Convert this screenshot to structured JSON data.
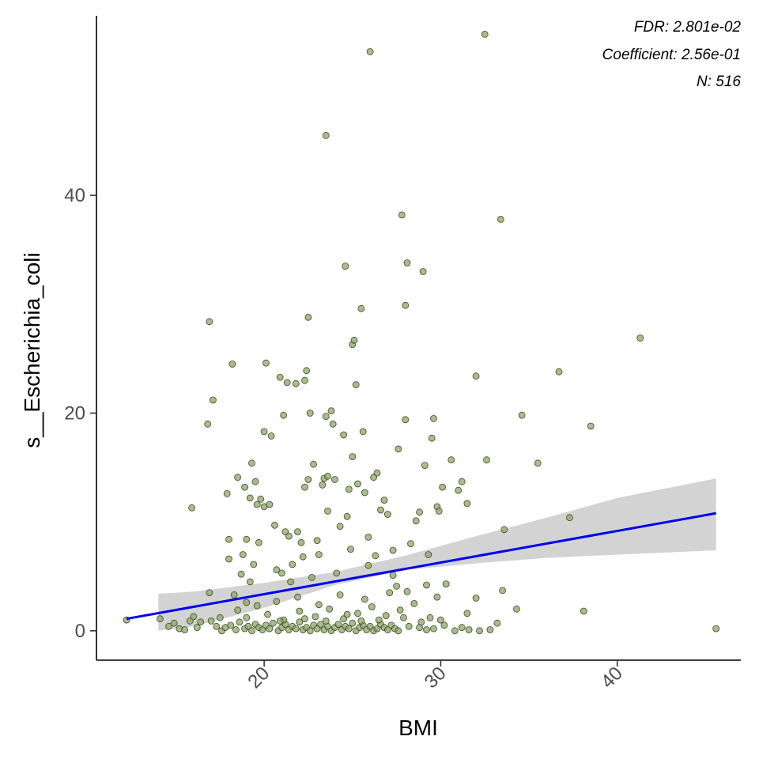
{
  "chart_data": {
    "type": "scatter",
    "xlabel": "BMI",
    "ylabel": "s__Escherichia_coli",
    "xlim": [
      10.5,
      47
    ],
    "ylim": [
      -2.7,
      56.5
    ],
    "x_ticks": [
      20,
      30,
      40
    ],
    "y_ticks": [
      0,
      20,
      40
    ],
    "grid": false,
    "annotations": [
      "FDR: 2.801e-02",
      "Coefficient: 2.56e-01",
      "N: 516"
    ],
    "colors": {
      "point_fill": "#8da46b",
      "point_stroke": "#3b4d1f",
      "fit_line": "#0000ee",
      "ribbon": "#d3d3d3"
    },
    "fit": {
      "line": [
        [
          12.2,
          1.1
        ],
        [
          45.6,
          10.8
        ]
      ],
      "ribbon_x": [
        14,
        16,
        20,
        24,
        28,
        32,
        36,
        40,
        45.6
      ],
      "ribbon_lower": [
        0,
        0.4,
        2.1,
        4.2,
        5.6,
        6.2,
        6.7,
        7.0,
        7.4
      ],
      "ribbon_upper": [
        3.4,
        3.6,
        4.4,
        5.4,
        6.9,
        8.7,
        10.4,
        12.2,
        14.0
      ]
    },
    "points": [
      [
        12.2,
        1.0
      ],
      [
        14.1,
        1.1
      ],
      [
        14.6,
        0.4
      ],
      [
        14.9,
        0.7
      ],
      [
        15.2,
        0.2
      ],
      [
        15.5,
        0.1
      ],
      [
        15.9,
        11.3
      ],
      [
        15.8,
        0.9
      ],
      [
        16.0,
        1.3
      ],
      [
        16.2,
        0.3
      ],
      [
        16.4,
        0.8
      ],
      [
        16.8,
        19.0
      ],
      [
        16.9,
        28.4
      ],
      [
        17.1,
        21.2
      ],
      [
        16.9,
        3.5
      ],
      [
        17.0,
        0.9
      ],
      [
        17.3,
        0.4
      ],
      [
        17.5,
        1.2
      ],
      [
        17.6,
        0.0
      ],
      [
        18.0,
        8.4
      ],
      [
        17.9,
        12.6
      ],
      [
        18.2,
        24.5
      ],
      [
        18.0,
        6.6
      ],
      [
        18.3,
        3.3
      ],
      [
        18.5,
        14.1
      ],
      [
        18.7,
        5.2
      ],
      [
        18.9,
        13.2
      ],
      [
        18.8,
        7.0
      ],
      [
        19.0,
        8.4
      ],
      [
        19.2,
        12.2
      ],
      [
        19.3,
        15.4
      ],
      [
        19.5,
        13.7
      ],
      [
        19.6,
        11.6
      ],
      [
        19.4,
        6.1
      ],
      [
        19.2,
        4.5
      ],
      [
        19.0,
        2.6
      ],
      [
        19.7,
        8.1
      ],
      [
        19.8,
        12.1
      ],
      [
        20.0,
        11.4
      ],
      [
        20.1,
        24.6
      ],
      [
        20.0,
        18.3
      ],
      [
        20.4,
        17.9
      ],
      [
        20.3,
        11.6
      ],
      [
        20.6,
        9.7
      ],
      [
        20.7,
        5.6
      ],
      [
        20.9,
        23.3
      ],
      [
        21.1,
        19.8
      ],
      [
        21.0,
        5.3
      ],
      [
        21.3,
        22.8
      ],
      [
        21.2,
        9.1
      ],
      [
        21.4,
        8.7
      ],
      [
        21.6,
        6.1
      ],
      [
        21.8,
        22.7
      ],
      [
        21.9,
        9.1
      ],
      [
        22.1,
        8.1
      ],
      [
        22.2,
        6.8
      ],
      [
        22.3,
        13.2
      ],
      [
        22.4,
        23.9
      ],
      [
        22.3,
        23.0
      ],
      [
        22.5,
        28.8
      ],
      [
        22.6,
        20.0
      ],
      [
        22.5,
        13.9
      ],
      [
        22.8,
        15.3
      ],
      [
        23.0,
        8.3
      ],
      [
        23.1,
        7.0
      ],
      [
        23.3,
        13.4
      ],
      [
        23.5,
        19.7
      ],
      [
        23.4,
        14.0
      ],
      [
        23.6,
        14.2
      ],
      [
        23.6,
        11.0
      ],
      [
        23.8,
        20.2
      ],
      [
        24.0,
        13.9
      ],
      [
        23.9,
        19.0
      ],
      [
        23.5,
        45.5
      ],
      [
        24.3,
        9.6
      ],
      [
        24.6,
        33.5
      ],
      [
        24.5,
        18.0
      ],
      [
        24.7,
        10.5
      ],
      [
        24.9,
        7.5
      ],
      [
        24.8,
        13.0
      ],
      [
        25.0,
        26.3
      ],
      [
        25.1,
        26.7
      ],
      [
        25.2,
        22.6
      ],
      [
        25.0,
        16.0
      ],
      [
        25.3,
        13.5
      ],
      [
        25.5,
        29.6
      ],
      [
        25.6,
        18.3
      ],
      [
        25.7,
        12.7
      ],
      [
        25.9,
        8.6
      ],
      [
        26.0,
        53.2
      ],
      [
        26.2,
        14.1
      ],
      [
        26.4,
        14.5
      ],
      [
        26.6,
        11.1
      ],
      [
        26.3,
        6.9
      ],
      [
        26.8,
        12.0
      ],
      [
        27.0,
        10.7
      ],
      [
        27.3,
        7.4
      ],
      [
        27.5,
        4.1
      ],
      [
        27.6,
        16.7
      ],
      [
        27.8,
        38.2
      ],
      [
        28.0,
        29.9
      ],
      [
        28.1,
        33.8
      ],
      [
        28.0,
        19.4
      ],
      [
        28.3,
        8.0
      ],
      [
        28.6,
        10.1
      ],
      [
        28.8,
        10.9
      ],
      [
        29.0,
        33.0
      ],
      [
        29.1,
        15.2
      ],
      [
        29.3,
        7.0
      ],
      [
        29.5,
        17.7
      ],
      [
        29.6,
        19.5
      ],
      [
        29.8,
        11.4
      ],
      [
        29.9,
        11.0
      ],
      [
        30.1,
        13.2
      ],
      [
        30.3,
        4.3
      ],
      [
        30.6,
        15.7
      ],
      [
        31.0,
        12.9
      ],
      [
        31.2,
        13.7
      ],
      [
        31.5,
        11.7
      ],
      [
        32.0,
        23.4
      ],
      [
        32.6,
        15.7
      ],
      [
        32.5,
        54.8
      ],
      [
        33.2,
        0.7
      ],
      [
        33.4,
        37.8
      ],
      [
        33.6,
        9.3
      ],
      [
        33.5,
        3.7
      ],
      [
        34.3,
        2.0
      ],
      [
        34.6,
        19.8
      ],
      [
        35.5,
        15.4
      ],
      [
        36.7,
        23.8
      ],
      [
        37.3,
        10.4
      ],
      [
        38.1,
        1.8
      ],
      [
        38.5,
        18.8
      ],
      [
        41.3,
        26.9
      ],
      [
        45.6,
        0.2
      ],
      [
        17.8,
        0.3
      ],
      [
        18.1,
        0.5
      ],
      [
        18.4,
        0.1
      ],
      [
        18.6,
        0.8
      ],
      [
        18.9,
        0.2
      ],
      [
        19.1,
        0.4
      ],
      [
        19.3,
        0.0
      ],
      [
        19.5,
        0.6
      ],
      [
        19.7,
        0.3
      ],
      [
        19.9,
        0.1
      ],
      [
        20.1,
        0.5
      ],
      [
        20.3,
        0.2
      ],
      [
        20.5,
        0.7
      ],
      [
        20.8,
        0.0
      ],
      [
        21.0,
        0.3
      ],
      [
        21.2,
        0.6
      ],
      [
        21.4,
        0.1
      ],
      [
        21.6,
        0.4
      ],
      [
        21.8,
        0.2
      ],
      [
        22.0,
        0.8
      ],
      [
        22.2,
        0.1
      ],
      [
        22.4,
        0.3
      ],
      [
        22.6,
        0.0
      ],
      [
        22.8,
        0.5
      ],
      [
        23.0,
        0.2
      ],
      [
        23.2,
        0.6
      ],
      [
        23.4,
        0.1
      ],
      [
        23.6,
        0.4
      ],
      [
        23.8,
        0.0
      ],
      [
        24.0,
        0.3
      ],
      [
        24.2,
        0.6
      ],
      [
        24.4,
        0.1
      ],
      [
        24.6,
        0.4
      ],
      [
        24.8,
        0.2
      ],
      [
        25.0,
        0.7
      ],
      [
        25.2,
        0.0
      ],
      [
        25.4,
        0.3
      ],
      [
        25.6,
        0.5
      ],
      [
        25.8,
        0.1
      ],
      [
        26.0,
        0.4
      ],
      [
        26.2,
        0.0
      ],
      [
        26.4,
        0.2
      ],
      [
        26.6,
        0.6
      ],
      [
        26.8,
        0.3
      ],
      [
        27.0,
        0.1
      ],
      [
        27.2,
        0.5
      ],
      [
        27.4,
        0.2
      ],
      [
        27.6,
        0.0
      ],
      [
        28.2,
        0.4
      ],
      [
        28.8,
        0.3
      ],
      [
        29.2,
        0.1
      ],
      [
        29.6,
        0.2
      ],
      [
        30.2,
        0.5
      ],
      [
        30.8,
        0.0
      ],
      [
        31.2,
        0.3
      ],
      [
        31.6,
        0.1
      ],
      [
        32.2,
        0.0
      ],
      [
        32.8,
        0.1
      ],
      [
        19.0,
        1.2
      ],
      [
        20.2,
        1.5
      ],
      [
        21.1,
        1.0
      ],
      [
        22.0,
        1.8
      ],
      [
        22.9,
        1.3
      ],
      [
        23.7,
        2.0
      ],
      [
        24.5,
        1.1
      ],
      [
        25.3,
        1.6
      ],
      [
        26.1,
        2.2
      ],
      [
        26.9,
        1.4
      ],
      [
        27.7,
        1.9
      ],
      [
        28.5,
        2.5
      ],
      [
        29.4,
        1.2
      ],
      [
        30.0,
        1.0
      ],
      [
        31.5,
        1.6
      ],
      [
        32.0,
        3.0
      ],
      [
        20.7,
        2.7
      ],
      [
        21.9,
        3.1
      ],
      [
        23.1,
        2.4
      ],
      [
        24.3,
        3.3
      ],
      [
        25.7,
        2.9
      ],
      [
        27.1,
        3.5
      ],
      [
        28.1,
        3.6
      ],
      [
        29.8,
        3.1
      ],
      [
        21.5,
        4.5
      ],
      [
        22.7,
        4.9
      ],
      [
        24.1,
        5.3
      ],
      [
        25.9,
        6.0
      ],
      [
        27.3,
        5.1
      ],
      [
        29.2,
        4.2
      ],
      [
        18.5,
        1.9
      ],
      [
        19.6,
        2.3
      ],
      [
        20.9,
        0.9
      ],
      [
        22.3,
        1.1
      ],
      [
        23.5,
        0.9
      ],
      [
        24.7,
        1.5
      ],
      [
        25.5,
        0.9
      ],
      [
        26.5,
        1.0
      ],
      [
        27.9,
        1.2
      ],
      [
        28.9,
        0.8
      ]
    ]
  }
}
